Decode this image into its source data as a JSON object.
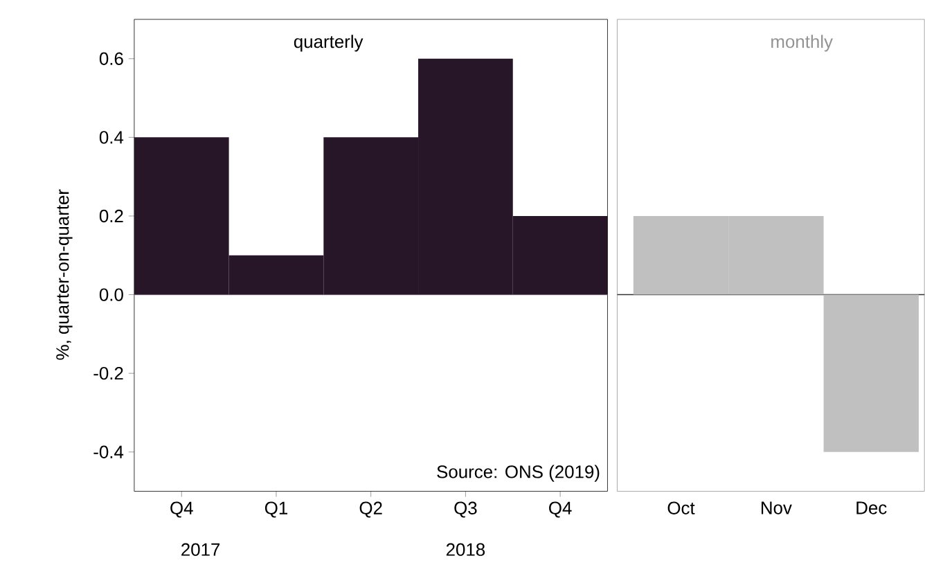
{
  "chart_data": [
    {
      "type": "bar",
      "title": "quarterly",
      "ylabel": "%, quarter-on-quarter",
      "categories": [
        "Q4",
        "Q1",
        "Q2",
        "Q3",
        "Q4"
      ],
      "values": [
        0.4,
        0.1,
        0.4,
        0.6,
        0.2
      ],
      "color": "#261628",
      "ylim": [
        -0.5,
        0.7
      ],
      "yticks": [
        -0.4,
        -0.2,
        {
          "value": 0,
          "label": "0.0"
        },
        0.2,
        0.4,
        0.6
      ],
      "annotations": [
        "Source: ONS (2019)",
        "2017",
        "2018"
      ]
    },
    {
      "type": "bar",
      "title": "monthly",
      "categories": [
        "Oct",
        "Nov",
        "Dec"
      ],
      "values": [
        0.2,
        0.2,
        -0.4
      ],
      "color": "#c0c0c0",
      "ylim": [
        -0.5,
        0.7
      ],
      "tick_labels": "x"
    }
  ]
}
